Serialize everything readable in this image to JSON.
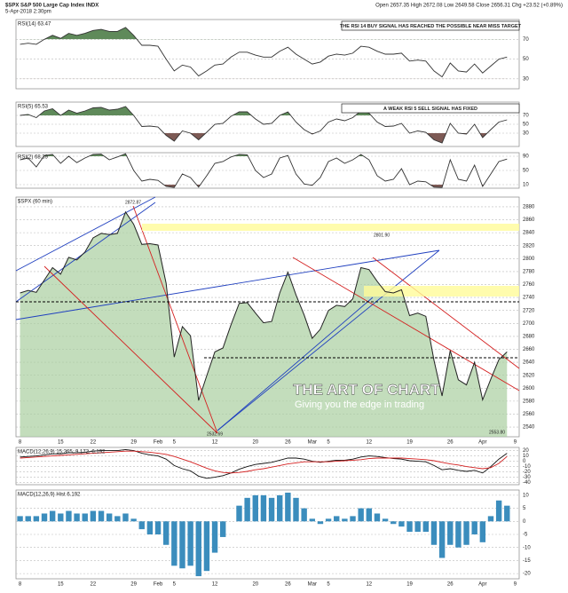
{
  "header": {
    "symbol": "$SPX S&P 500 Large Cap Index INDX",
    "date": "5-Apr-2018 2:30pm",
    "quote": "Open 2657.35  High 2672.08  Low 2649.58  Close 2656.31  Chg +23.52 (+0.89%)"
  },
  "chart_data": [
    {
      "type": "line",
      "title": "RSI(14) 63.47",
      "annotation": "THE RSI 14 BUY SIGNAL HAS REACHED THE POSSIBLE NEAR MISS TARGET",
      "color": "#333333",
      "ylim": [
        20,
        90
      ],
      "yticks": [
        70,
        50,
        30
      ],
      "grid": true,
      "values": [
        65,
        66,
        65,
        70,
        74,
        71,
        76,
        74,
        76,
        79,
        80,
        78,
        78,
        82,
        74,
        64,
        64,
        63,
        50,
        38,
        44,
        42,
        33,
        38,
        44,
        45,
        52,
        57,
        57,
        54,
        52,
        52,
        58,
        62,
        55,
        50,
        45,
        47,
        53,
        55,
        54,
        56,
        63,
        62,
        58,
        55,
        55,
        56,
        48,
        49,
        48,
        38,
        32,
        46,
        38,
        37,
        45,
        36,
        43,
        50,
        52
      ]
    },
    {
      "type": "line",
      "title": "RSI(5) 65.53",
      "annotation": "A WEAK RSI 5 SELL SIGNAL HAS FIXED",
      "color": "#333333",
      "ylim": [
        0,
        100
      ],
      "yticks": [
        70,
        50,
        30
      ],
      "grid": true,
      "values": [
        70,
        72,
        65,
        80,
        85,
        70,
        82,
        75,
        80,
        87,
        88,
        82,
        84,
        90,
        70,
        45,
        46,
        44,
        25,
        12,
        35,
        30,
        15,
        32,
        50,
        52,
        68,
        78,
        78,
        62,
        50,
        52,
        70,
        78,
        55,
        38,
        28,
        35,
        55,
        62,
        58,
        65,
        80,
        75,
        55,
        45,
        46,
        52,
        30,
        35,
        32,
        15,
        8,
        52,
        30,
        28,
        50,
        20,
        38,
        55,
        60
      ]
    },
    {
      "type": "line",
      "title": "RSI(2) 68.39",
      "color": "#333333",
      "ylim": [
        0,
        100
      ],
      "yticks": [
        90,
        50,
        10
      ],
      "grid": true,
      "values": [
        80,
        85,
        60,
        92,
        95,
        70,
        90,
        72,
        85,
        95,
        96,
        80,
        88,
        97,
        50,
        20,
        25,
        22,
        5,
        2,
        40,
        30,
        3,
        35,
        70,
        75,
        88,
        95,
        94,
        50,
        30,
        40,
        85,
        92,
        40,
        12,
        8,
        30,
        75,
        85,
        70,
        80,
        95,
        80,
        35,
        20,
        25,
        55,
        10,
        20,
        18,
        3,
        2,
        80,
        25,
        20,
        65,
        5,
        40,
        75,
        82
      ]
    },
    {
      "type": "area",
      "title": "$SPX (60 min)",
      "color": "#222222",
      "fill": "#a9cfa0",
      "ylim": [
        2525,
        2895
      ],
      "yticks": [
        2540,
        2560,
        2580,
        2600,
        2620,
        2640,
        2660,
        2680,
        2700,
        2720,
        2740,
        2760,
        2780,
        2800,
        2820,
        2840,
        2860,
        2880
      ],
      "grid": true,
      "categories": [
        "8",
        null,
        null,
        null,
        null,
        "15",
        null,
        null,
        null,
        "22",
        null,
        null,
        null,
        null,
        "29",
        null,
        null,
        "Feb",
        null,
        "5",
        null,
        null,
        null,
        null,
        "12",
        null,
        null,
        null,
        null,
        "20",
        null,
        null,
        null,
        "26",
        null,
        null,
        "Mar",
        null,
        "5",
        null,
        null,
        null,
        null,
        "12",
        null,
        null,
        null,
        null,
        "19",
        null,
        null,
        null,
        null,
        "26",
        null,
        null,
        null,
        "Apr",
        null,
        null,
        null,
        "9"
      ],
      "values": [
        2747,
        2751,
        2748,
        2767,
        2786,
        2776,
        2802,
        2798,
        2810,
        2832,
        2839,
        2837,
        2839,
        2872,
        2853,
        2822,
        2823,
        2821,
        2762,
        2648,
        2695,
        2681,
        2581,
        2619,
        2656,
        2662,
        2698,
        2731,
        2732,
        2716,
        2701,
        2703,
        2747,
        2779,
        2744,
        2713,
        2677,
        2691,
        2720,
        2728,
        2726,
        2738,
        2786,
        2783,
        2765,
        2749,
        2747,
        2752,
        2712,
        2716,
        2711,
        2643,
        2588,
        2658,
        2613,
        2605,
        2640,
        2582,
        2614,
        2644,
        2656,
        null
      ],
      "annotations": [
        "2872.87",
        "2532.69",
        "2801.90",
        "2553.80"
      ],
      "watermark": [
        "THE ART OF CHART",
        "Giving you the edge in trading"
      ]
    },
    {
      "type": "line",
      "title": "MACD(12,26,9) 15.365, 9.172, 6.192",
      "ylim": [
        -44,
        26
      ],
      "yticks": [
        20,
        10,
        0,
        -10,
        -20,
        -30,
        -40
      ],
      "grid": true,
      "series": [
        {
          "color": "#111111",
          "values": [
            8,
            9,
            10,
            12,
            14,
            14,
            16,
            16,
            17,
            19,
            20,
            20,
            20,
            22,
            20,
            15,
            12,
            10,
            4,
            -8,
            -14,
            -18,
            -28,
            -32,
            -30,
            -27,
            -22,
            -15,
            -10,
            -6,
            -4,
            -2,
            2,
            6,
            6,
            4,
            0,
            -2,
            0,
            2,
            2,
            4,
            8,
            10,
            9,
            7,
            5,
            4,
            1,
            0,
            -1,
            -8,
            -16,
            -14,
            -17,
            -19,
            -17,
            -22,
            -10,
            4,
            15
          ]
        },
        {
          "color": "#d42020",
          "values": [
            6,
            7,
            8,
            9,
            10,
            11,
            12,
            13,
            14,
            15,
            16,
            17,
            18,
            19,
            19,
            18,
            17,
            15,
            13,
            9,
            4,
            -1,
            -7,
            -13,
            -18,
            -21,
            -22,
            -21,
            -19,
            -16,
            -14,
            -11,
            -8,
            -5,
            -3,
            -1,
            -1,
            -1,
            -1,
            0,
            1,
            2,
            3,
            5,
            6,
            6,
            6,
            6,
            5,
            4,
            3,
            1,
            -2,
            -5,
            -7,
            -10,
            -12,
            -14,
            -12,
            -4,
            9
          ]
        }
      ]
    },
    {
      "type": "bar",
      "title": "MACD(12,26,9) Hist 6.192",
      "color": "#3b8dbd",
      "ylim": [
        -22,
        12
      ],
      "yticks": [
        10,
        5,
        0,
        -5,
        -10,
        -15,
        -20
      ],
      "grid": true,
      "categories": [
        "8",
        null,
        null,
        null,
        null,
        "15",
        null,
        null,
        null,
        "22",
        null,
        null,
        null,
        null,
        "29",
        null,
        null,
        "Feb",
        null,
        "5",
        null,
        null,
        null,
        null,
        "12",
        null,
        null,
        null,
        null,
        "20",
        null,
        null,
        null,
        "26",
        null,
        null,
        "Mar",
        null,
        "5",
        null,
        null,
        null,
        null,
        "12",
        null,
        null,
        null,
        null,
        "19",
        null,
        null,
        null,
        null,
        "26",
        null,
        null,
        null,
        "Apr",
        null,
        null,
        null,
        "9"
      ],
      "values": [
        2,
        2,
        2,
        3,
        4,
        3,
        4,
        3,
        3,
        4,
        4,
        3,
        2,
        3,
        1,
        -3,
        -5,
        -5,
        -9,
        -17,
        -18,
        -17,
        -21,
        -19,
        -12,
        -6,
        0,
        6,
        9,
        10,
        10,
        9,
        10,
        11,
        9,
        5,
        1,
        -1,
        1,
        2,
        1,
        2,
        5,
        5,
        3,
        1,
        -1,
        -2,
        -4,
        -4,
        -4,
        -9,
        -14,
        -9,
        -10,
        -9,
        -5,
        -8,
        2,
        8,
        6,
        null
      ]
    }
  ]
}
